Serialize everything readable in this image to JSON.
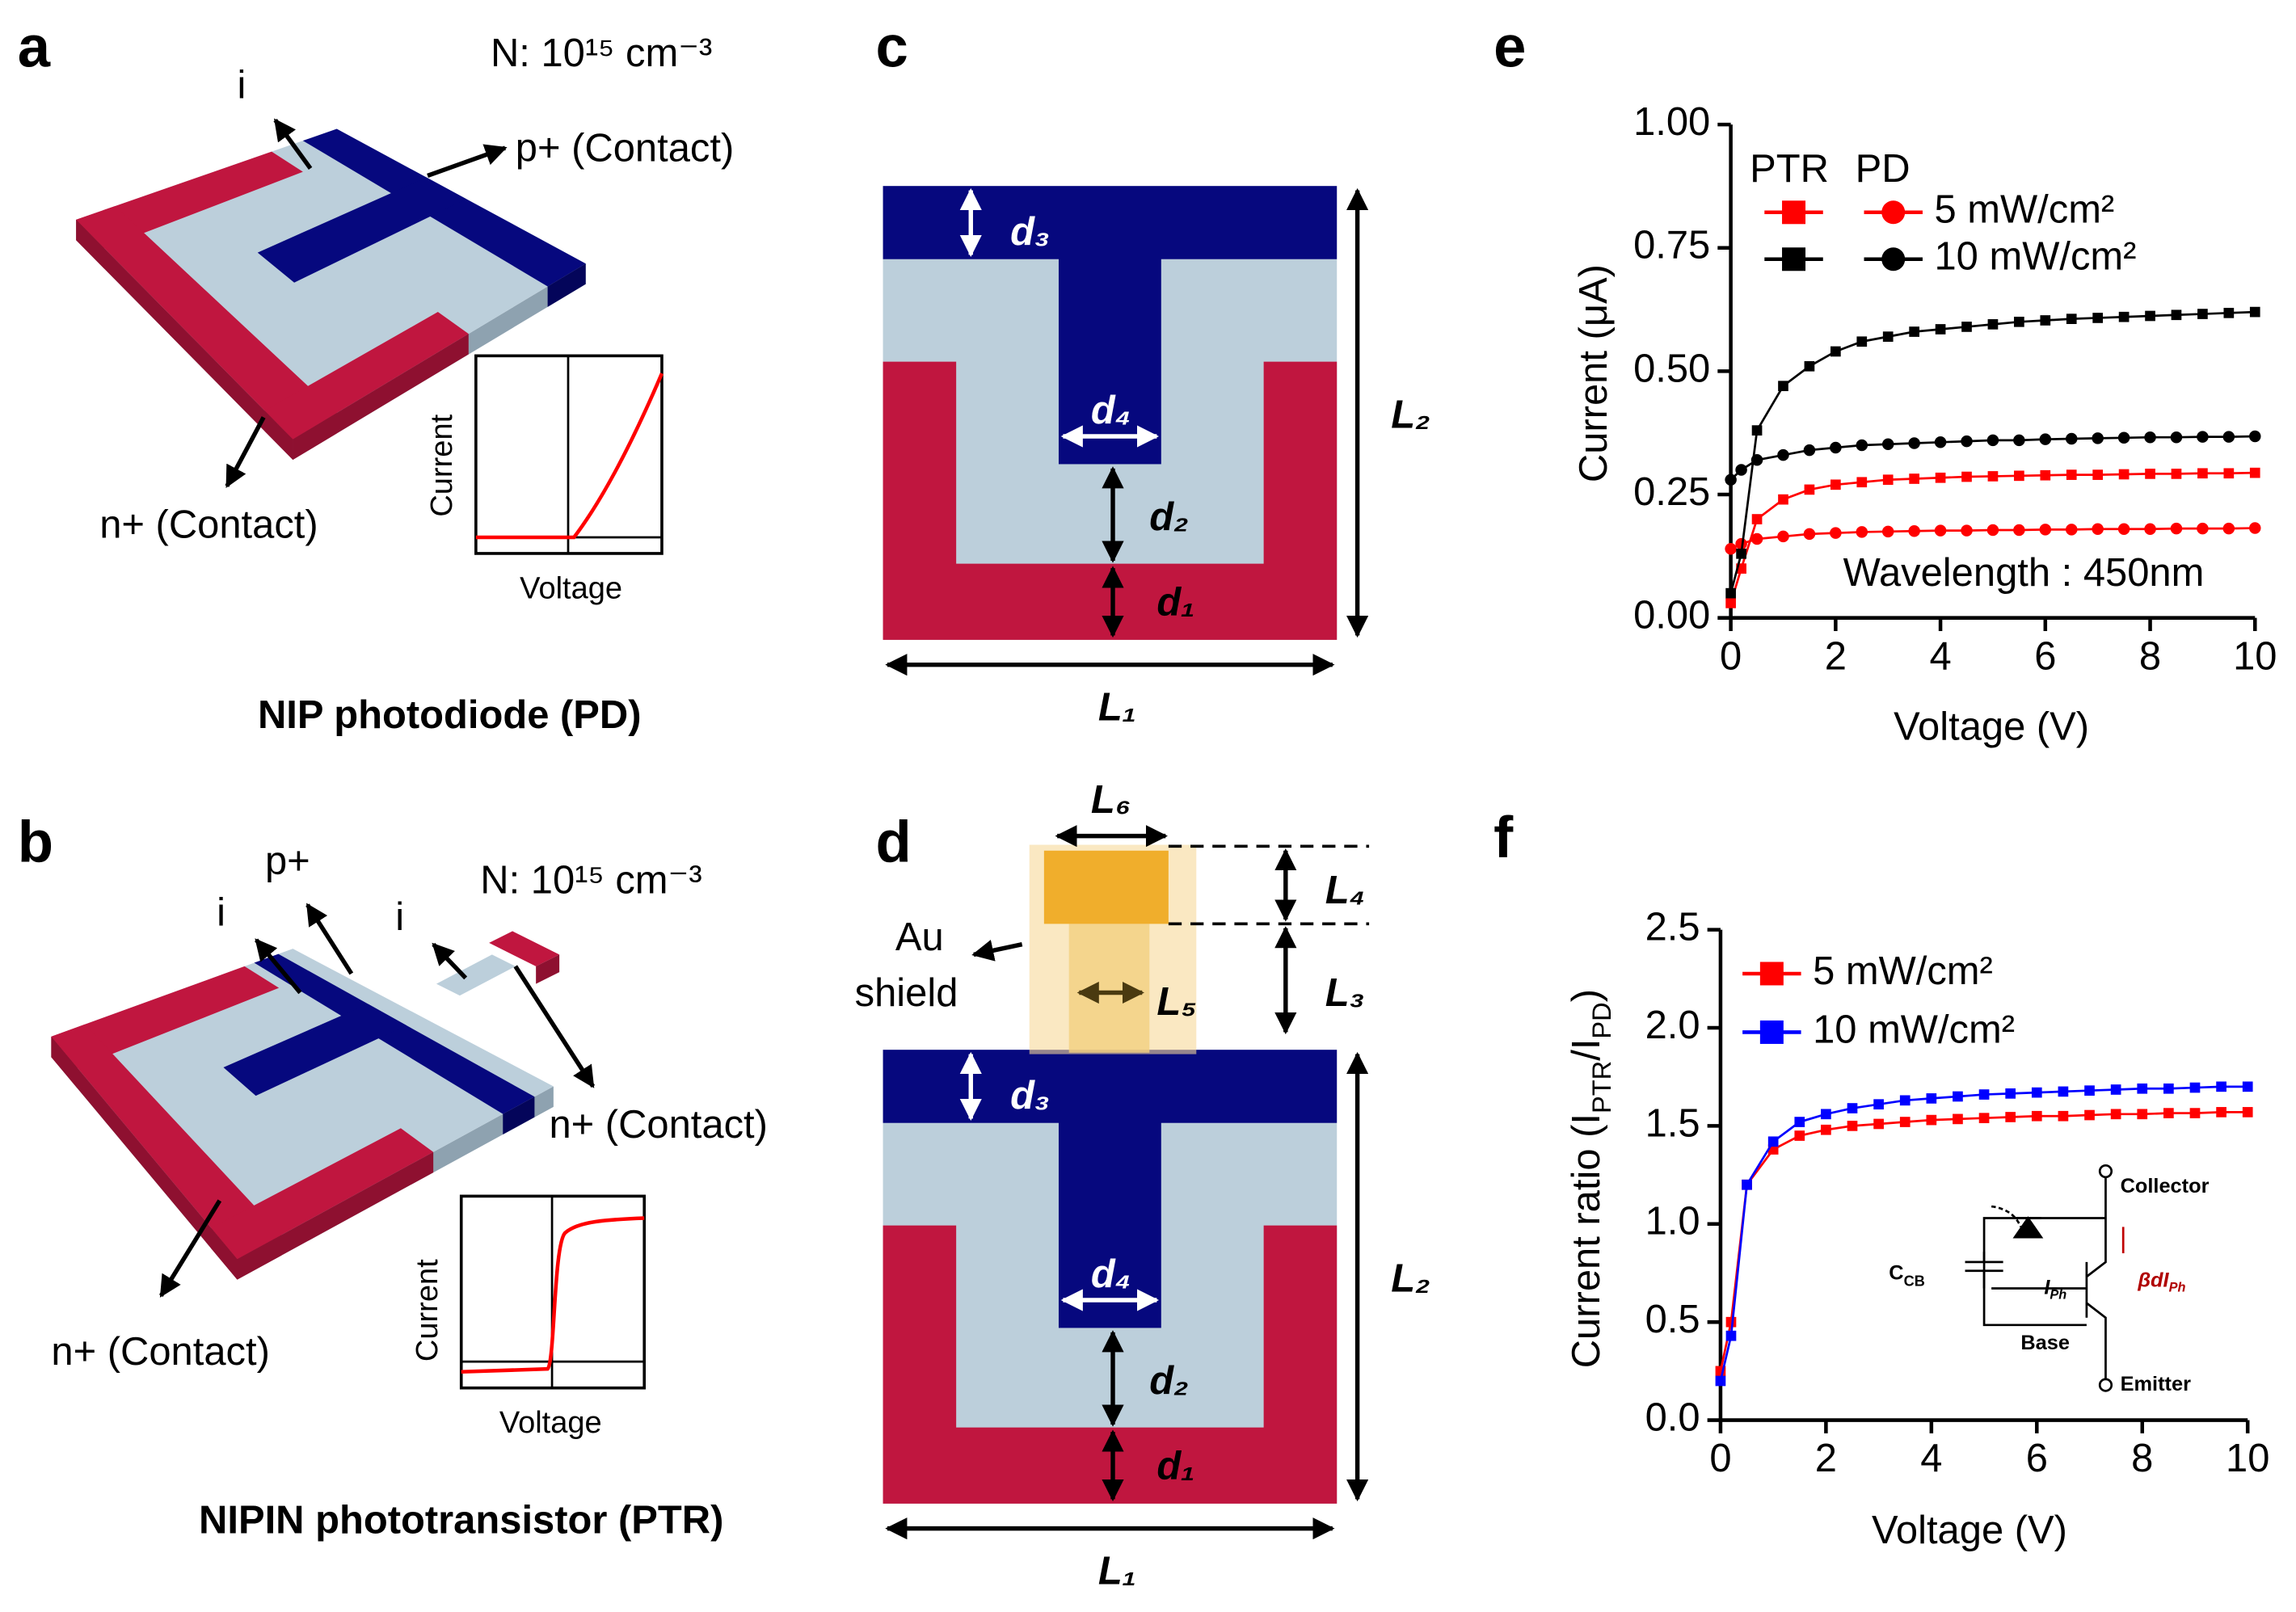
{
  "panels": {
    "a": {
      "letter": "a",
      "doping": "N: 10¹⁵ cm⁻³",
      "i": "i",
      "p": "p+ (Contact)",
      "n": "n+ (Contact)",
      "inset_y": "Current",
      "inset_x": "Voltage",
      "caption": "NIP photodiode (PD)"
    },
    "b": {
      "letter": "b",
      "p": "p+",
      "i1": "i",
      "i2": "i",
      "doping": "N: 10¹⁵ cm⁻³",
      "n_top": "n+ (Contact)",
      "n": "n+ (Contact)",
      "inset_y": "Current",
      "inset_x": "Voltage",
      "caption": "NIPIN phototransistor (PTR)"
    },
    "c": {
      "letter": "c",
      "d3": "d₃",
      "d4": "d₄",
      "d2": "d₂",
      "d1": "d₁",
      "L2": "L₂",
      "L1": "L₁"
    },
    "d": {
      "letter": "d",
      "L6": "L₆",
      "L4": "L₄",
      "L3": "L₃",
      "L5": "L₅",
      "shield": [
        "Au",
        "shield"
      ],
      "d3": "d₃",
      "d4": "d₄",
      "d2": "d₂",
      "d1": "d₁",
      "L2": "L₂",
      "L1": "L₁"
    },
    "e": {
      "letter": "e"
    },
    "f": {
      "letter": "f",
      "circuit": {
        "collector": "Collector",
        "base": "Base",
        "emitter": "Emitter",
        "ccb": [
          "C",
          "CB"
        ],
        "iph": [
          "I",
          "Ph"
        ],
        "beta": [
          "βdI",
          "Ph"
        ]
      }
    }
  },
  "chart_data": [
    {
      "type": "line",
      "devices": [
        "PTR",
        "PD"
      ],
      "device_markers": [
        "square",
        "circle"
      ],
      "x": [
        0,
        0.2,
        0.5,
        1,
        1.5,
        2,
        2.5,
        3,
        3.5,
        4,
        4.5,
        5,
        5.5,
        6,
        6.5,
        7,
        7.5,
        8,
        8.5,
        9,
        9.5,
        10
      ],
      "series": [
        {
          "name": "5 mW/cm²",
          "color": "#ff0000",
          "PTR": [
            0.03,
            0.1,
            0.2,
            0.24,
            0.26,
            0.27,
            0.275,
            0.28,
            0.282,
            0.284,
            0.286,
            0.287,
            0.288,
            0.289,
            0.29,
            0.29,
            0.291,
            0.292,
            0.292,
            0.293,
            0.293,
            0.294
          ],
          "PD": [
            0.14,
            0.15,
            0.16,
            0.165,
            0.17,
            0.172,
            0.174,
            0.175,
            0.176,
            0.177,
            0.177,
            0.178,
            0.178,
            0.179,
            0.179,
            0.18,
            0.18,
            0.18,
            0.181,
            0.181,
            0.181,
            0.182
          ]
        },
        {
          "name": "10 mW/cm²",
          "color": "#000000",
          "PTR": [
            0.05,
            0.13,
            0.38,
            0.47,
            0.51,
            0.54,
            0.56,
            0.57,
            0.58,
            0.585,
            0.59,
            0.595,
            0.6,
            0.603,
            0.606,
            0.608,
            0.61,
            0.612,
            0.614,
            0.616,
            0.618,
            0.62
          ],
          "PD": [
            0.28,
            0.3,
            0.32,
            0.33,
            0.34,
            0.345,
            0.35,
            0.352,
            0.354,
            0.356,
            0.358,
            0.36,
            0.36,
            0.362,
            0.363,
            0.364,
            0.365,
            0.366,
            0.366,
            0.367,
            0.367,
            0.368
          ]
        }
      ],
      "xlabel": "Voltage (V)",
      "ylabel": "Current (μA)",
      "annotation": "Wavelength : 450nm",
      "xlim": [
        0,
        10
      ],
      "ylim": [
        0,
        1
      ],
      "xticks": [
        0,
        2,
        4,
        6,
        8,
        10
      ],
      "yticks": [
        {
          "value": 0,
          "label": "0.00"
        },
        0.25,
        {
          "value": 0.5,
          "label": "0.50"
        },
        0.75,
        {
          "value": 1,
          "label": "1.00"
        }
      ]
    },
    {
      "type": "line",
      "x": [
        0,
        0.2,
        0.5,
        1,
        1.5,
        2,
        2.5,
        3,
        3.5,
        4,
        4.5,
        5,
        5.5,
        6,
        6.5,
        7,
        7.5,
        8,
        8.5,
        9,
        9.5,
        10
      ],
      "series": [
        {
          "name": "5 mW/cm²",
          "color": "#ff0000",
          "values": [
            0.25,
            0.5,
            1.2,
            1.38,
            1.45,
            1.48,
            1.5,
            1.51,
            1.52,
            1.53,
            1.535,
            1.54,
            1.545,
            1.55,
            1.55,
            1.555,
            1.56,
            1.56,
            1.565,
            1.565,
            1.57,
            1.57
          ]
        },
        {
          "name": "10 mW/cm²",
          "color": "#0000ff",
          "values": [
            0.2,
            0.43,
            1.2,
            1.42,
            1.52,
            1.56,
            1.59,
            1.61,
            1.63,
            1.64,
            1.65,
            1.66,
            1.665,
            1.67,
            1.675,
            1.68,
            1.685,
            1.69,
            1.69,
            1.695,
            1.7,
            1.7
          ]
        }
      ],
      "xlabel": "Voltage (V)",
      "ylabel": [
        "Current ratio (I",
        "PTR",
        "/I",
        "PD",
        ")"
      ],
      "xlim": [
        0,
        10
      ],
      "ylim": [
        0,
        2.5
      ],
      "xticks": [
        0,
        2,
        4,
        6,
        8,
        10
      ],
      "yticks": [
        {
          "value": 0,
          "label": "0.0"
        },
        0.5,
        {
          "value": 1,
          "label": "1.0"
        },
        1.5,
        {
          "value": 2,
          "label": "2.0"
        },
        2.5
      ]
    }
  ]
}
